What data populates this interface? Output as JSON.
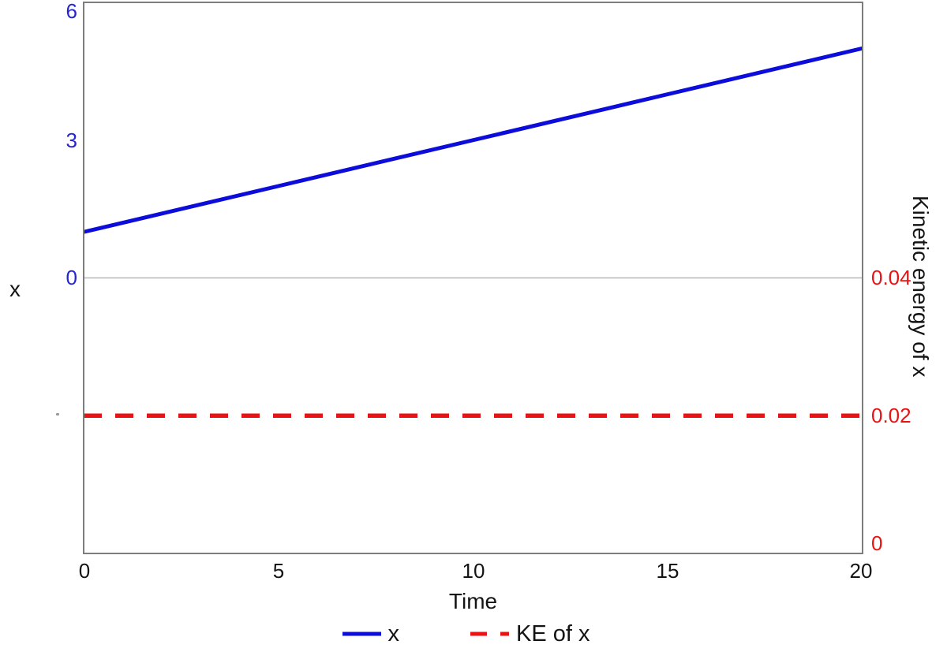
{
  "chart_data": {
    "type": "line",
    "title": "",
    "x_axis": {
      "label": "Time",
      "range": [
        0,
        20
      ],
      "ticks": [
        {
          "value": 0,
          "label": "0"
        },
        {
          "value": 5,
          "label": "5"
        },
        {
          "value": 10,
          "label": "10"
        },
        {
          "value": 15,
          "label": "15"
        },
        {
          "value": 20,
          "label": "20"
        }
      ]
    },
    "left_axis": {
      "label": "x",
      "range": [
        -6,
        6
      ],
      "tick_color": "#2525d2",
      "ticks": [
        {
          "value": 6,
          "label": "6"
        },
        {
          "value": 3,
          "label": "3"
        },
        {
          "value": 0,
          "label": "0"
        }
      ]
    },
    "right_axis": {
      "label": "Kinetic energy of x",
      "range": [
        0,
        0.08
      ],
      "tick_color": "#e81414",
      "ticks": [
        {
          "value": 0.04,
          "label": "0.04"
        },
        {
          "value": 0.02,
          "label": "0.02"
        },
        {
          "value": 0,
          "label": "0"
        }
      ]
    },
    "grid": {
      "horizontal_gridline_at_left_value": 0,
      "color": "#b8b8b8",
      "border_color": "#7d7d7d"
    },
    "series": [
      {
        "name": "x",
        "axis": "left",
        "color": "#0c0cdb",
        "style": "solid",
        "x": [
          0,
          5,
          10,
          15,
          20
        ],
        "y": [
          1.0,
          2.0,
          3.0,
          4.0,
          5.0
        ]
      },
      {
        "name": "KE of x",
        "axis": "right",
        "color": "#ea1212",
        "style": "dashed",
        "x": [
          0,
          20
        ],
        "y": [
          0.02,
          0.02
        ]
      }
    ],
    "legend": {
      "position": "bottom",
      "entries": [
        {
          "label": "x"
        },
        {
          "label": "KE of x"
        }
      ]
    }
  }
}
